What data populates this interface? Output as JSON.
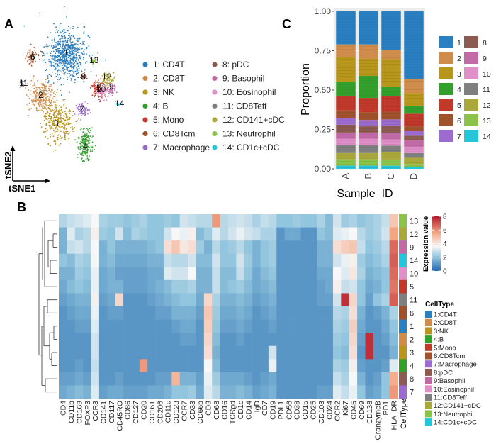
{
  "panels": {
    "a": "A",
    "b": "B",
    "c": "C"
  },
  "clusters": [
    {
      "id": "1",
      "name": "CD4T",
      "color": "#2a7fc0"
    },
    {
      "id": "2",
      "name": "CD8T",
      "color": "#d08c4a"
    },
    {
      "id": "3",
      "name": "NK",
      "color": "#b8961c"
    },
    {
      "id": "4",
      "name": "B",
      "color": "#33a02c"
    },
    {
      "id": "5",
      "name": "Mono",
      "color": "#c0392b"
    },
    {
      "id": "6",
      "name": "CD8Tcm",
      "color": "#a0522d"
    },
    {
      "id": "7",
      "name": "Macrophage",
      "color": "#9b6bcf"
    },
    {
      "id": "8",
      "name": "pDC",
      "color": "#8b5a50"
    },
    {
      "id": "9",
      "name": "Basophil",
      "color": "#c26aa6"
    },
    {
      "id": "10",
      "name": "Eosinophil",
      "color": "#e08fc8"
    },
    {
      "id": "11",
      "name": "CD8Teff",
      "color": "#7f7f7f"
    },
    {
      "id": "12",
      "name": "CD141+cDC",
      "color": "#aaa83a"
    },
    {
      "id": "13",
      "name": "Neutrophil",
      "color": "#8bc34a"
    },
    {
      "id": "14",
      "name": "CD1c+cDC",
      "color": "#26c6da"
    }
  ],
  "tsne": {
    "legend_labels": [
      "1: CD4T",
      "2: CD8T",
      "3: NK",
      "4: B",
      "5: Mono",
      "6: CD8Tcm",
      "7: Macrophage",
      "8: pDC",
      "9: Basophil",
      "10: Eosinophil",
      "11: CD8Teff",
      "12: CD141+cDC",
      "13: Neutrophil",
      "14: CD1c+cDC"
    ],
    "axis_x": "tSNE1",
    "axis_y": "tSNE2"
  },
  "chart_data": [
    {
      "type": "bar",
      "stacked": true,
      "title": "",
      "xlabel": "Sample_ID",
      "ylabel": "Proportion",
      "categories": [
        "A",
        "B",
        "C",
        "D"
      ],
      "ylim": [
        0,
        1
      ],
      "yticks": [
        "0.00",
        "0.25",
        "0.50",
        "0.75",
        "1.00"
      ],
      "legend_entries": [
        "1",
        "2",
        "3",
        "4",
        "5",
        "6",
        "7",
        "8",
        "9",
        "10",
        "11",
        "12",
        "13",
        "14"
      ],
      "series": [
        {
          "name": "1",
          "values": [
            0.21,
            0.21,
            0.25,
            0.43
          ]
        },
        {
          "name": "2",
          "values": [
            0.08,
            0.09,
            0.06,
            0.09
          ]
        },
        {
          "name": "3",
          "values": [
            0.16,
            0.11,
            0.18,
            0.08
          ]
        },
        {
          "name": "4",
          "values": [
            0.09,
            0.14,
            0.06,
            0.05
          ]
        },
        {
          "name": "5",
          "values": [
            0.09,
            0.09,
            0.1,
            0.08
          ]
        },
        {
          "name": "6",
          "values": [
            0.05,
            0.05,
            0.05,
            0.03
          ]
        },
        {
          "name": "7",
          "values": [
            0.04,
            0.04,
            0.04,
            0.03
          ]
        },
        {
          "name": "8",
          "values": [
            0.05,
            0.04,
            0.05,
            0.03
          ]
        },
        {
          "name": "9",
          "values": [
            0.04,
            0.04,
            0.04,
            0.04
          ]
        },
        {
          "name": "10",
          "values": [
            0.04,
            0.04,
            0.04,
            0.04
          ]
        },
        {
          "name": "11",
          "values": [
            0.05,
            0.05,
            0.04,
            0.03
          ]
        },
        {
          "name": "12",
          "values": [
            0.04,
            0.04,
            0.05,
            0.04
          ]
        },
        {
          "name": "13",
          "values": [
            0.04,
            0.04,
            0.04,
            0.02
          ]
        },
        {
          "name": "14",
          "values": [
            0.02,
            0.02,
            0.02,
            0.01
          ]
        }
      ]
    },
    {
      "type": "heatmap",
      "title": "",
      "colorbar_title": "Expression value",
      "colorbar_ticks": [
        "0",
        "2",
        "4",
        "6",
        "8"
      ],
      "colorbar_range": [
        0,
        8
      ],
      "celltype_label": "CellType",
      "celltype_legend_title": "CellType",
      "celltype_legend": [
        "1:CD4T",
        "2:CD8T",
        "3:NK",
        "4:B",
        "5:Mono",
        "6:CD8Tcm",
        "7:Macrophage",
        "8:pDC",
        "9:Basophil",
        "10:Eosinophil",
        "11:CD8Teff",
        "12:CD141+cDC",
        "13:Neutrophil",
        "14:CD1c+cDC"
      ],
      "genes": [
        "CD4",
        "CD11b",
        "CD163",
        "FOXP3",
        "CCR3",
        "CD141",
        "CD117",
        "CD45RO",
        "CD86",
        "CD127",
        "CD20",
        "CD161",
        "CD206",
        "CD11c",
        "CD123",
        "CCR7",
        "CD33",
        "CD66b",
        "CD3",
        "CD68",
        "CD16",
        "TCRgd",
        "CD1c",
        "CD14",
        "IgD",
        "CD7",
        "CD19",
        "PDL1",
        "CD56",
        "CD38",
        "CD15",
        "CD25",
        "CD103",
        "CD24",
        "CCR2",
        "Ki67",
        "CD45",
        "CD69",
        "CD138",
        "GranzymeB",
        "PD1",
        "HLA_DR"
      ],
      "rows": [
        "13",
        "12",
        "9",
        "14",
        "10",
        "5",
        "11",
        "6",
        "1",
        "2",
        "3",
        "4",
        "8",
        "7"
      ],
      "values": [
        [
          2.5,
          2.8,
          3.0,
          3.2,
          3.6,
          2.4,
          2.2,
          2.2,
          2.0,
          2.2,
          2.4,
          2.0,
          2.0,
          2.2,
          2.0,
          3.0,
          2.8,
          2.6,
          2.6,
          5.8,
          2.6,
          2.8,
          3.0,
          2.8,
          2.4,
          2.8,
          2.6,
          2.0,
          2.0,
          2.2,
          2.0,
          2.0,
          2.4,
          1.8,
          3.0,
          2.2,
          2.4,
          2.0,
          2.2,
          2.4,
          2.8,
          4.8
        ],
        [
          1.6,
          3.2,
          2.4,
          2.6,
          3.8,
          2.2,
          2.0,
          3.0,
          1.8,
          2.4,
          2.2,
          2.0,
          2.0,
          3.0,
          3.6,
          3.4,
          3.8,
          1.8,
          2.2,
          3.2,
          2.6,
          3.0,
          3.4,
          3.0,
          2.8,
          2.4,
          2.4,
          1.0,
          1.4,
          1.4,
          1.0,
          1.0,
          2.0,
          1.8,
          3.2,
          3.4,
          3.6,
          2.6,
          2.2,
          2.4,
          3.0,
          5.6
        ],
        [
          1.6,
          2.8,
          3.0,
          2.6,
          3.6,
          1.6,
          2.0,
          1.6,
          1.6,
          1.6,
          1.6,
          1.8,
          2.0,
          4.2,
          4.8,
          4.0,
          4.2,
          2.2,
          1.6,
          2.6,
          2.0,
          2.2,
          2.6,
          2.0,
          1.6,
          2.0,
          2.2,
          1.0,
          1.0,
          1.0,
          1.0,
          1.0,
          1.6,
          1.6,
          4.2,
          4.6,
          4.8,
          2.8,
          2.0,
          2.2,
          2.6,
          6.6
        ],
        [
          2.0,
          1.8,
          2.4,
          2.2,
          3.6,
          1.6,
          1.8,
          1.4,
          1.4,
          1.4,
          1.4,
          1.6,
          1.6,
          2.8,
          2.6,
          2.6,
          3.0,
          1.8,
          1.8,
          3.0,
          2.0,
          2.0,
          3.0,
          2.2,
          1.6,
          2.0,
          2.2,
          1.0,
          1.0,
          1.0,
          1.0,
          1.0,
          1.6,
          1.6,
          3.0,
          3.4,
          3.8,
          2.2,
          1.8,
          2.0,
          2.4,
          6.8
        ],
        [
          1.6,
          1.6,
          2.2,
          2.0,
          3.4,
          1.4,
          1.6,
          1.2,
          1.2,
          1.2,
          1.2,
          1.4,
          1.4,
          3.2,
          3.0,
          3.0,
          3.6,
          1.6,
          1.6,
          2.8,
          1.8,
          1.8,
          2.8,
          2.0,
          1.4,
          1.8,
          2.0,
          1.0,
          1.0,
          1.0,
          1.0,
          1.0,
          1.4,
          1.4,
          3.6,
          3.2,
          4.0,
          2.4,
          1.6,
          1.8,
          2.0,
          6.6
        ],
        [
          1.4,
          1.8,
          2.0,
          1.8,
          3.4,
          1.4,
          1.6,
          1.6,
          1.2,
          1.2,
          1.2,
          1.4,
          1.6,
          1.8,
          2.2,
          2.2,
          2.4,
          1.6,
          1.6,
          2.8,
          1.8,
          2.0,
          2.2,
          1.8,
          1.4,
          1.6,
          1.8,
          1.0,
          1.0,
          1.0,
          1.0,
          1.0,
          1.2,
          1.4,
          3.8,
          2.8,
          3.0,
          2.0,
          1.4,
          1.6,
          2.0,
          6.4
        ],
        [
          1.2,
          1.4,
          1.6,
          1.6,
          3.8,
          1.2,
          1.4,
          4.4,
          1.0,
          1.0,
          1.0,
          1.2,
          1.4,
          1.6,
          1.8,
          2.0,
          2.0,
          1.4,
          4.4,
          2.4,
          1.6,
          1.6,
          1.8,
          1.6,
          1.2,
          1.4,
          1.6,
          1.0,
          1.0,
          1.0,
          1.0,
          1.0,
          1.2,
          1.2,
          3.0,
          7.6,
          4.4,
          2.0,
          1.2,
          2.0,
          2.4,
          6.8
        ],
        [
          1.0,
          1.2,
          1.4,
          1.4,
          3.4,
          1.0,
          1.2,
          1.2,
          1.0,
          1.0,
          1.0,
          1.0,
          1.2,
          1.2,
          1.6,
          1.6,
          1.6,
          1.2,
          4.8,
          2.2,
          1.4,
          1.4,
          1.6,
          1.4,
          1.0,
          1.2,
          1.4,
          1.0,
          1.0,
          1.0,
          1.0,
          1.0,
          1.0,
          1.0,
          2.6,
          2.4,
          4.2,
          1.6,
          1.0,
          1.2,
          1.6,
          2.4
        ],
        [
          1.0,
          1.0,
          1.2,
          1.2,
          3.2,
          1.0,
          1.0,
          1.0,
          1.0,
          1.0,
          1.0,
          1.0,
          1.0,
          1.0,
          1.2,
          1.4,
          1.4,
          1.0,
          4.6,
          2.0,
          1.2,
          1.2,
          1.4,
          1.2,
          1.0,
          1.0,
          1.2,
          1.0,
          1.0,
          1.0,
          1.0,
          1.0,
          1.0,
          1.0,
          2.4,
          2.2,
          4.6,
          1.4,
          1.0,
          1.0,
          1.4,
          2.0
        ],
        [
          1.0,
          1.0,
          1.0,
          1.0,
          3.0,
          1.0,
          1.0,
          1.0,
          1.0,
          1.0,
          1.0,
          1.0,
          1.0,
          1.0,
          1.0,
          1.2,
          1.2,
          1.0,
          4.4,
          1.8,
          1.0,
          1.0,
          1.2,
          1.0,
          1.0,
          1.0,
          1.0,
          1.0,
          1.0,
          1.0,
          1.0,
          1.0,
          1.0,
          1.0,
          2.2,
          2.0,
          4.4,
          1.2,
          7.6,
          1.0,
          1.2,
          1.8
        ],
        [
          1.0,
          1.0,
          1.0,
          1.0,
          3.0,
          1.0,
          1.0,
          1.0,
          1.0,
          1.0,
          1.0,
          1.0,
          1.0,
          1.0,
          1.0,
          1.0,
          1.0,
          1.0,
          4.2,
          1.6,
          1.0,
          1.0,
          1.0,
          1.0,
          1.0,
          1.0,
          3.0,
          1.0,
          1.0,
          1.0,
          1.0,
          1.0,
          1.0,
          1.0,
          2.0,
          1.8,
          4.2,
          1.0,
          7.6,
          1.0,
          1.0,
          1.6
        ],
        [
          1.0,
          1.0,
          1.2,
          1.0,
          2.8,
          1.0,
          1.0,
          1.0,
          1.0,
          1.0,
          5.8,
          1.0,
          1.0,
          1.0,
          1.0,
          1.0,
          1.0,
          1.0,
          3.6,
          1.8,
          1.0,
          1.0,
          1.0,
          1.0,
          1.0,
          1.0,
          3.4,
          1.0,
          1.0,
          1.0,
          1.0,
          1.0,
          1.0,
          1.0,
          2.4,
          2.2,
          3.8,
          1.2,
          1.0,
          1.0,
          1.2,
          3.2
        ],
        [
          1.2,
          1.2,
          1.4,
          1.2,
          3.0,
          1.0,
          1.0,
          1.2,
          1.0,
          1.0,
          1.0,
          1.0,
          1.2,
          1.2,
          5.2,
          1.6,
          1.6,
          1.2,
          3.4,
          2.2,
          1.4,
          1.4,
          1.4,
          1.2,
          1.0,
          1.2,
          1.4,
          1.0,
          1.0,
          1.0,
          1.0,
          1.0,
          1.0,
          1.0,
          2.8,
          2.4,
          3.6,
          1.6,
          1.0,
          1.2,
          2.0,
          5.4
        ],
        [
          1.4,
          1.6,
          1.8,
          1.6,
          3.2,
          1.2,
          1.4,
          1.4,
          1.2,
          1.2,
          1.2,
          1.4,
          1.4,
          1.6,
          2.0,
          2.0,
          2.2,
          1.4,
          3.2,
          2.6,
          1.6,
          1.6,
          1.8,
          1.6,
          1.2,
          1.4,
          1.6,
          1.0,
          1.0,
          1.0,
          1.0,
          1.0,
          1.2,
          1.2,
          3.2,
          2.8,
          3.4,
          2.0,
          1.2,
          1.4,
          2.0,
          5.8
        ]
      ]
    }
  ]
}
